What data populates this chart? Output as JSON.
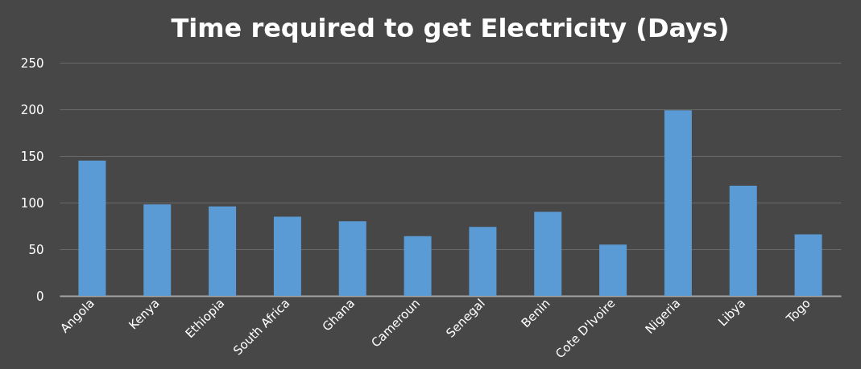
{
  "chart_data": {
    "type": "bar",
    "title": "Time required to get Electricity (Days)",
    "categories": [
      "Angola",
      "Kenya",
      "Ethiopia",
      "South Africa",
      "Ghana",
      "Cameroun",
      "Senegal",
      "Benin",
      "Cote D'Ivoire",
      "Nigeria",
      "Libya",
      "Togo"
    ],
    "values": [
      145,
      98,
      96,
      85,
      80,
      64,
      74,
      90,
      55,
      199,
      118,
      66
    ],
    "color": "#5b9bd5",
    "ylim": [
      0,
      250
    ],
    "yticks": [
      0,
      50,
      100,
      150,
      200,
      250
    ],
    "grid": "y"
  }
}
